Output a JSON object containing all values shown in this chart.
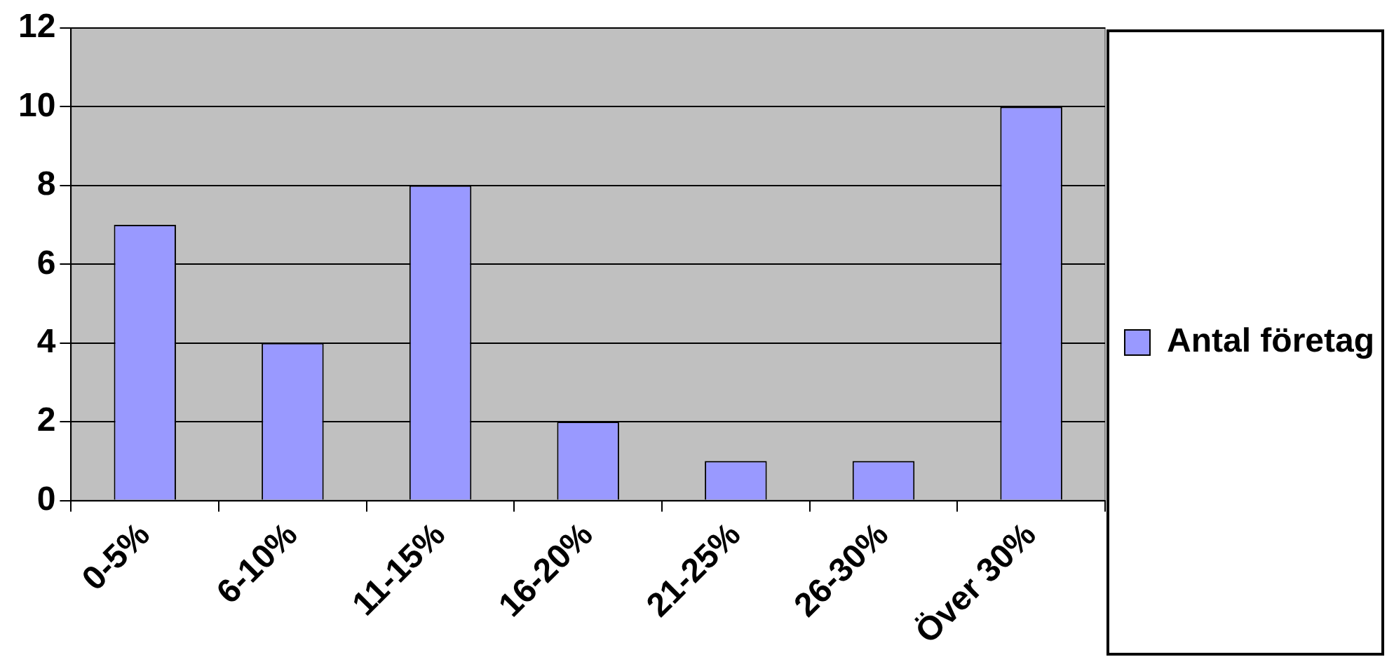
{
  "chart_data": {
    "type": "bar",
    "categories": [
      "0-5%",
      "6-10%",
      "11-15%",
      "16-20%",
      "21-25%",
      "26-30%",
      "Över 30%"
    ],
    "series": [
      {
        "name": "Antal företag",
        "color": "#9999ff",
        "values": [
          7,
          4,
          8,
          2,
          1,
          1,
          10
        ]
      }
    ],
    "ylim": [
      0,
      12
    ],
    "yticks": [
      0,
      2,
      4,
      6,
      8,
      10,
      12
    ],
    "grid": "y",
    "legend": "right"
  }
}
